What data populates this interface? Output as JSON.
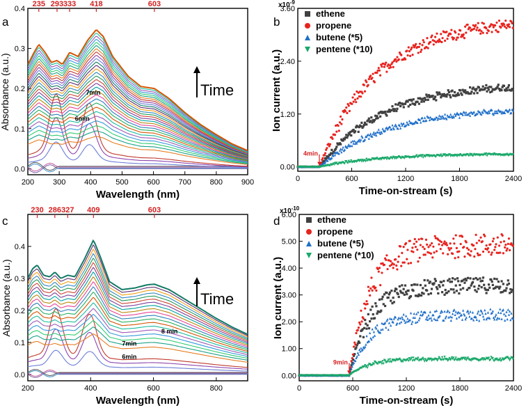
{
  "chart_data": [
    {
      "id": "a",
      "type": "line",
      "panel_label": "a",
      "xlabel": "Wavelength (nm)",
      "ylabel": "Absorbance (a.u.)",
      "xlim": [
        200,
        900
      ],
      "ylim": [
        -0.015,
        0.4
      ],
      "xticks": [
        200,
        300,
        400,
        500,
        600,
        700,
        800,
        900
      ],
      "yticks": [
        0.0,
        0.1,
        0.2,
        0.3,
        0.4
      ],
      "ytick_labels": [
        "0.0",
        "0.1",
        "0.2",
        "0.3",
        "0.4"
      ],
      "peak_markers": [
        235,
        293,
        333,
        418,
        603
      ],
      "peak_labels": [
        "235",
        "293",
        "333",
        "418",
        "603"
      ],
      "annotation": "Time",
      "curve_labels": [
        {
          "text": "7min",
          "x": 385,
          "y": 0.185
        },
        {
          "text": "6min",
          "x": 350,
          "y": 0.12
        }
      ],
      "series_count": 32,
      "final_spectrum": [
        [
          200,
          0.26
        ],
        [
          220,
          0.29
        ],
        [
          235,
          0.31
        ],
        [
          255,
          0.29
        ],
        [
          275,
          0.265
        ],
        [
          293,
          0.27
        ],
        [
          310,
          0.26
        ],
        [
          333,
          0.29
        ],
        [
          360,
          0.28
        ],
        [
          390,
          0.32
        ],
        [
          418,
          0.347
        ],
        [
          440,
          0.33
        ],
        [
          470,
          0.28
        ],
        [
          520,
          0.23
        ],
        [
          560,
          0.205
        ],
        [
          603,
          0.2
        ],
        [
          650,
          0.175
        ],
        [
          700,
          0.14
        ],
        [
          750,
          0.11
        ],
        [
          800,
          0.085
        ],
        [
          850,
          0.062
        ],
        [
          900,
          0.045
        ]
      ]
    },
    {
      "id": "b",
      "type": "scatter",
      "panel_label": "b",
      "xlabel": "Time-on-stream (s)",
      "ylabel": "Ion current (a.u.)",
      "y_multiplier": "x10",
      "y_exponent": "-9",
      "xlim": [
        0,
        2400
      ],
      "ylim": [
        -0.1,
        3.6
      ],
      "xticks": [
        0,
        600,
        1200,
        1800,
        2400
      ],
      "yticks": [
        0.0,
        1.2,
        2.4,
        3.6
      ],
      "ytick_labels": [
        "0.00",
        "1.20",
        "2.40",
        "3.60"
      ],
      "onset_label": "4min",
      "onset_time": 240,
      "series": [
        {
          "name": "ethene",
          "color": "#404040",
          "marker": "square",
          "plateau": 1.9,
          "rate": 700
        },
        {
          "name": "propene",
          "color": "#e8231e",
          "marker": "circle",
          "plateau": 3.35,
          "rate": 650
        },
        {
          "name": "butene (*5)",
          "color": "#1f6fc9",
          "marker": "triangle-up",
          "plateau": 1.35,
          "rate": 750
        },
        {
          "name": "pentene (*10)",
          "color": "#1aa86a",
          "marker": "triangle-down",
          "plateau": 0.3,
          "rate": 700
        }
      ]
    },
    {
      "id": "c",
      "type": "line",
      "panel_label": "c",
      "xlabel": "Wavelength (nm)",
      "ylabel": "Absorbance (a.u.)",
      "xlim": [
        200,
        900
      ],
      "ylim": [
        -0.02,
        0.5
      ],
      "xticks": [
        200,
        400,
        600,
        800
      ],
      "yticks": [
        0.0,
        0.1,
        0.2,
        0.3,
        0.4
      ],
      "ytick_labels": [
        "0.0",
        "0.1",
        "0.2",
        "0.3",
        "0.4"
      ],
      "peak_markers": [
        230,
        286,
        327,
        409,
        603
      ],
      "peak_labels": [
        "230",
        "286",
        "327",
        "409",
        "603"
      ],
      "annotation": "Time",
      "curve_labels": [
        {
          "text": "8 min",
          "x": 625,
          "y": 0.128
        },
        {
          "text": "7min",
          "x": 500,
          "y": 0.09
        },
        {
          "text": "6min",
          "x": 500,
          "y": 0.048
        }
      ],
      "series_count": 22,
      "final_spectrum": [
        [
          200,
          0.3
        ],
        [
          215,
          0.33
        ],
        [
          230,
          0.342
        ],
        [
          250,
          0.31
        ],
        [
          270,
          0.305
        ],
        [
          286,
          0.32
        ],
        [
          305,
          0.3
        ],
        [
          327,
          0.31
        ],
        [
          350,
          0.305
        ],
        [
          380,
          0.36
        ],
        [
          409,
          0.42
        ],
        [
          430,
          0.37
        ],
        [
          460,
          0.29
        ],
        [
          500,
          0.265
        ],
        [
          540,
          0.27
        ],
        [
          580,
          0.28
        ],
        [
          603,
          0.282
        ],
        [
          650,
          0.265
        ],
        [
          700,
          0.235
        ],
        [
          750,
          0.205
        ],
        [
          800,
          0.175
        ],
        [
          850,
          0.148
        ],
        [
          900,
          0.125
        ]
      ]
    },
    {
      "id": "d",
      "type": "scatter",
      "panel_label": "d",
      "xlabel": "Time-on-stream (s)",
      "ylabel": "Ion current (a.u.)",
      "y_multiplier": "x10",
      "y_exponent": "-10",
      "xlim": [
        0,
        2400
      ],
      "ylim": [
        -0.2,
        6.0
      ],
      "xticks": [
        0,
        600,
        1200,
        1800,
        2400
      ],
      "yticks": [
        0,
        1,
        2,
        3,
        4,
        5,
        6
      ],
      "ytick_labels": [
        "0.00",
        "1.00",
        "2.00",
        "3.00",
        "4.00",
        "5.00",
        "6.00"
      ],
      "onset_label": "9min",
      "onset_time": 560,
      "series": [
        {
          "name": "ethene",
          "color": "#404040",
          "marker": "square",
          "plateau": 3.35,
          "rate": 230
        },
        {
          "name": "propene",
          "color": "#e8231e",
          "marker": "circle",
          "plateau": 4.85,
          "rate": 230
        },
        {
          "name": "butene (*5)",
          "color": "#1f6fc9",
          "marker": "triangle-up",
          "plateau": 2.25,
          "rate": 230
        },
        {
          "name": "pentene (*10)",
          "color": "#1aa86a",
          "marker": "triangle-down",
          "plateau": 0.62,
          "rate": 230
        }
      ]
    }
  ]
}
